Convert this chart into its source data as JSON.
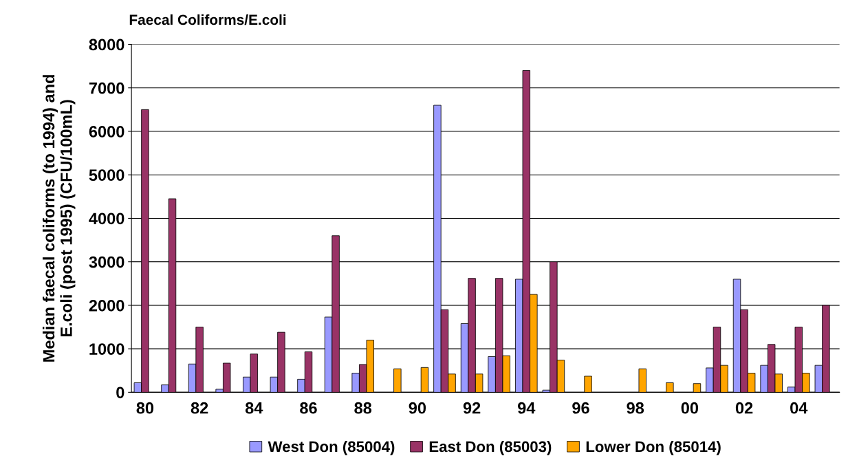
{
  "chart_data": {
    "type": "bar",
    "title": "Faecal Coliforms/E.coli",
    "ylabel": "Median faecal coliforms (to 1994) and\nE.coli (post 1995) (CFU/100mL)",
    "categories": [
      "80",
      null,
      "82",
      null,
      "84",
      null,
      "86",
      null,
      "88",
      null,
      "90",
      null,
      "92",
      null,
      "94",
      null,
      "96",
      null,
      "98",
      null,
      "00",
      null,
      "02",
      null,
      "04",
      null
    ],
    "series": [
      {
        "name": "West Don (85004)",
        "color": "#9999ff",
        "values": [
          220,
          170,
          650,
          70,
          350,
          350,
          300,
          1730,
          440,
          null,
          null,
          6600,
          1580,
          820,
          2600,
          50,
          null,
          null,
          null,
          null,
          null,
          560,
          2600,
          620,
          120,
          620
        ]
      },
      {
        "name": "East Don (85003)",
        "color": "#993366",
        "values": [
          6500,
          4450,
          1500,
          670,
          880,
          1380,
          930,
          3600,
          640,
          null,
          null,
          1900,
          2620,
          2620,
          7400,
          3000,
          null,
          null,
          null,
          null,
          null,
          1500,
          1900,
          1100,
          1500,
          2000
        ]
      },
      {
        "name": "Lower Don (85014)",
        "color": "#ffa500",
        "values": [
          null,
          null,
          null,
          null,
          null,
          null,
          null,
          null,
          1200,
          540,
          570,
          420,
          420,
          840,
          2250,
          740,
          370,
          null,
          540,
          220,
          200,
          620,
          440,
          420,
          440,
          null
        ]
      }
    ],
    "ylim": [
      0,
      8000
    ],
    "yticks": [
      0,
      1000,
      2000,
      3000,
      4000,
      5000,
      6000,
      7000,
      8000
    ],
    "grid": "y",
    "legend": "bottom"
  }
}
